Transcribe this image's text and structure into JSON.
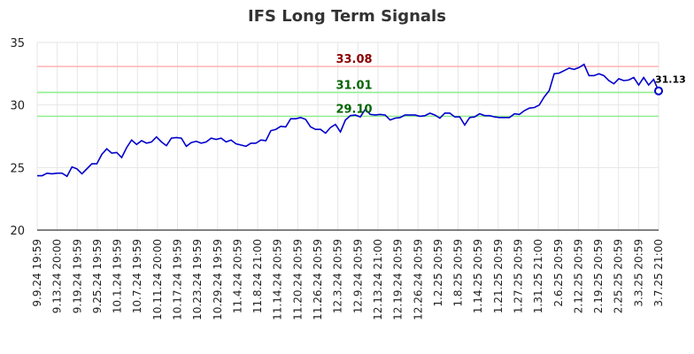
{
  "chart_data": {
    "type": "line",
    "title": "IFS Long Term Signals",
    "xlabel": "",
    "ylabel": "",
    "ylim": [
      20,
      35
    ],
    "yticks": [
      20,
      25,
      30,
      35
    ],
    "grid": true,
    "legend": "none",
    "x_tick_labels": [
      "9.9.24 19:59",
      "9.13.24 20:00",
      "9.19.24 19:59",
      "9.25.24 19:59",
      "10.1.24 19:59",
      "10.7.24 19:59",
      "10.11.24 20:00",
      "10.17.24 19:59",
      "10.23.24 19:59",
      "10.29.24 19:59",
      "11.4.24 20:59",
      "11.8.24 21:00",
      "11.14.24 20:59",
      "11.20.24 20:59",
      "11.26.24 20:59",
      "12.3.24 20:59",
      "12.9.24 20:59",
      "12.13.24 21:00",
      "12.19.24 20:59",
      "12.26.24 20:59",
      "1.2.25 20:59",
      "1.8.25 20:59",
      "1.14.25 20:59",
      "1.21.25 20:59",
      "1.27.25 20:59",
      "1.31.25 21:00",
      "2.6.25 20:59",
      "2.12.25 20:59",
      "2.19.25 20:59",
      "2.25.25 20:59",
      "3.3.25 20:59",
      "3.7.25 21:00"
    ],
    "series": [
      {
        "values": [
          24.35,
          24.35,
          24.55,
          24.5,
          24.55,
          24.55,
          24.3,
          25.05,
          24.9,
          24.5,
          24.9,
          25.3,
          25.3,
          26.05,
          26.5,
          26.15,
          26.2,
          25.8,
          26.6,
          27.2,
          26.85,
          27.15,
          26.95,
          27.05,
          27.45,
          27.05,
          26.75,
          27.35,
          27.4,
          27.35,
          26.7,
          27.0,
          27.1,
          26.95,
          27.05,
          27.35,
          27.25,
          27.35,
          27.05,
          27.2,
          26.9,
          26.8,
          26.7,
          26.95,
          26.95,
          27.2,
          27.15,
          27.95,
          28.05,
          28.3,
          28.25,
          28.9,
          28.9,
          29.0,
          28.85,
          28.25,
          28.05,
          28.05,
          27.75,
          28.2,
          28.45,
          27.85,
          28.8,
          29.15,
          29.2,
          29.05,
          29.65,
          29.25,
          29.2,
          29.25,
          29.2,
          28.8,
          28.95,
          29.0,
          29.2,
          29.2,
          29.2,
          29.1,
          29.15,
          29.35,
          29.2,
          28.95,
          29.35,
          29.35,
          29.05,
          29.05,
          28.4,
          29.0,
          29.05,
          29.3,
          29.15,
          29.15,
          29.05,
          29.0,
          29.0,
          29.0,
          29.3,
          29.25,
          29.55,
          29.75,
          29.8,
          30.0,
          30.65,
          31.15,
          32.5,
          32.55,
          32.75,
          32.95,
          32.85,
          33.0,
          33.25,
          32.35,
          32.35,
          32.5,
          32.35,
          31.95,
          31.7,
          32.1,
          31.95,
          32.0,
          32.2,
          31.6,
          32.2,
          31.6,
          32.05,
          31.13
        ]
      }
    ],
    "reference_lines": [
      {
        "label": "33.08",
        "value": 33.08,
        "line_color": "#ffb3b3",
        "text_color": "#8b0000"
      },
      {
        "label": "31.01",
        "value": 31.01,
        "line_color": "#90ee90",
        "text_color": "#006400"
      },
      {
        "label": "29.10",
        "value": 29.1,
        "line_color": "#90ee90",
        "text_color": "#006400"
      }
    ],
    "last_value_label": "31.13",
    "line_color": "#0000cc",
    "marker_color": "#0000cc"
  }
}
